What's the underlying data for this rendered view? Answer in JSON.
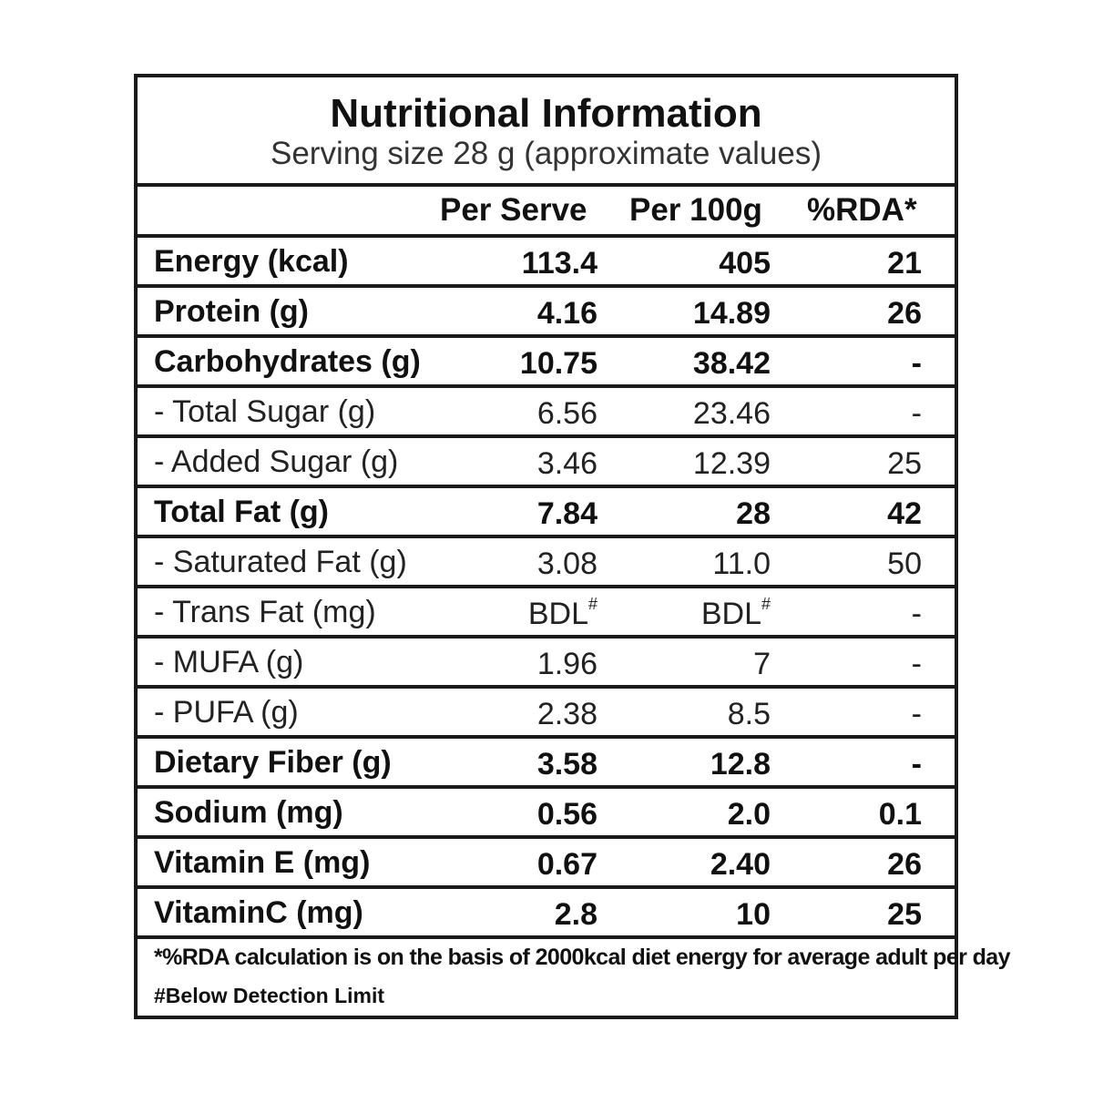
{
  "header": {
    "title": "Nutritional Information",
    "subtitle": "Serving size 28 g (approximate values)"
  },
  "columns": {
    "per_serve": "Per Serve",
    "per_100g": "Per 100g",
    "rda": "%RDA*"
  },
  "rows": [
    {
      "label": "Energy (kcal)",
      "per_serve": "113.4",
      "per_100g": "405",
      "rda": "21",
      "style": "bold"
    },
    {
      "label": "Protein (g)",
      "per_serve": "4.16",
      "per_100g": "14.89",
      "rda": "26",
      "style": "bold"
    },
    {
      "label": "Carbohydrates (g)",
      "per_serve": "10.75",
      "per_100g": "38.42",
      "rda": "-",
      "style": "bold"
    },
    {
      "label": "- Total Sugar (g)",
      "per_serve": "6.56",
      "per_100g": "23.46",
      "rda": "-",
      "style": "normal"
    },
    {
      "label": "- Added Sugar (g)",
      "per_serve": "3.46",
      "per_100g": "12.39",
      "rda": "25",
      "style": "normal"
    },
    {
      "label": "Total Fat (g)",
      "per_serve": "7.84",
      "per_100g": "28",
      "rda": "42",
      "style": "bold"
    },
    {
      "label": "- Saturated Fat (g)",
      "per_serve": "3.08",
      "per_100g": "11.0",
      "rda": "50",
      "style": "normal"
    },
    {
      "label": "- Trans Fat (mg)",
      "per_serve": "BDL",
      "per_serve_mark": "#",
      "per_100g": "BDL",
      "per_100g_mark": "#",
      "rda": "-",
      "style": "normal"
    },
    {
      "label": "- MUFA (g)",
      "per_serve": "1.96",
      "per_100g": "7",
      "rda": "-",
      "style": "normal"
    },
    {
      "label": "- PUFA (g)",
      "per_serve": "2.38",
      "per_100g": "8.5",
      "rda": "-",
      "style": "normal"
    },
    {
      "label": "Dietary Fiber (g)",
      "per_serve": "3.58",
      "per_100g": "12.8",
      "rda": "-",
      "style": "bold"
    },
    {
      "label": "Sodium (mg)",
      "per_serve": "0.56",
      "per_100g": "2.0",
      "rda": "0.1",
      "style": "bold"
    },
    {
      "label": "Vitamin E (mg)",
      "per_serve": "0.67",
      "per_100g": "2.40",
      "rda": "26",
      "style": "bold"
    },
    {
      "label": "VitaminC (mg)",
      "per_serve": "2.8",
      "per_100g": "10",
      "rda": "25",
      "style": "bold"
    }
  ],
  "footnotes": {
    "rda_note": "*%RDA calculation is on the basis of 2000kcal diet energy for average adult per day",
    "bdl_note": "#Below Detection Limit"
  }
}
